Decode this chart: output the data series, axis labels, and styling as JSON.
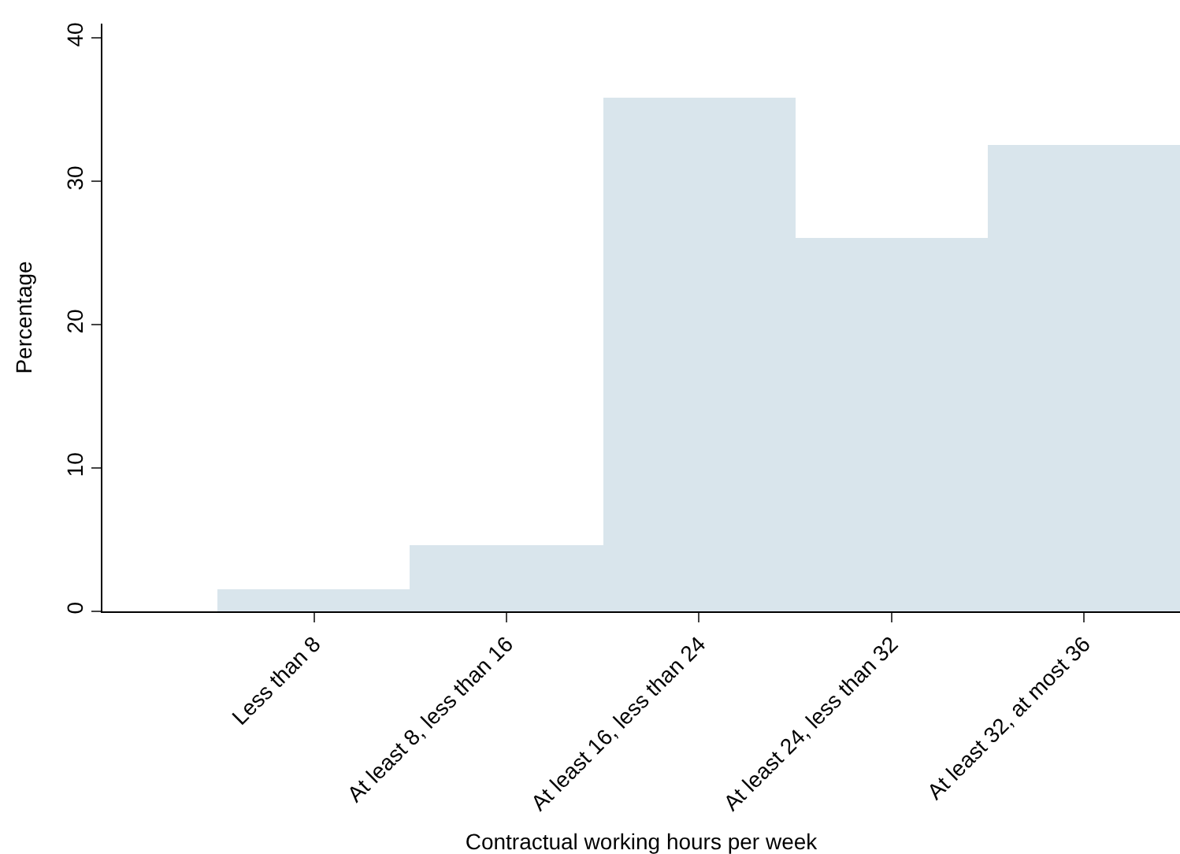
{
  "chart_data": {
    "type": "bar",
    "xlabel": "Contractual working hours per week",
    "ylabel": "Percentage",
    "categories": [
      "Less than 8",
      "At least 8, less than 16",
      "At least 16, less than 24",
      "At least 24, less than 32",
      "At least 32, at most 36"
    ],
    "values": [
      1.5,
      4.6,
      35.8,
      26.0,
      32.5
    ],
    "color": "#d9e5ec",
    "ylim": [
      0,
      41
    ],
    "yticks": [
      0,
      10,
      20,
      30,
      40
    ]
  }
}
